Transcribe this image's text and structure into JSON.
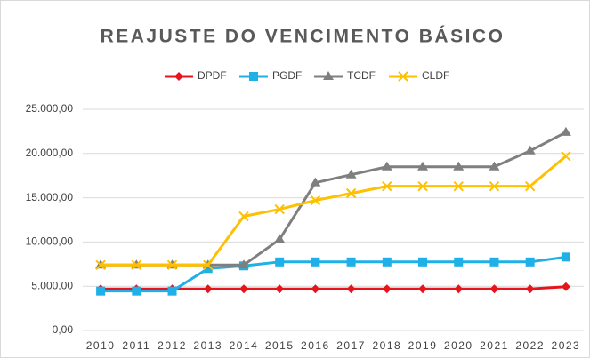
{
  "chart_data": {
    "type": "line",
    "title": "REAJUSTE DO VENCIMENTO BÁSICO",
    "categories": [
      "2010",
      "2011",
      "2012",
      "2013",
      "2014",
      "2015",
      "2016",
      "2017",
      "2018",
      "2019",
      "2020",
      "2021",
      "2022",
      "2023"
    ],
    "series": [
      {
        "name": "DPDF",
        "color": "#e8141b",
        "marker": "diamond",
        "values": [
          4700,
          4700,
          4700,
          4700,
          4700,
          4700,
          4700,
          4700,
          4700,
          4700,
          4700,
          4700,
          4700,
          4950
        ]
      },
      {
        "name": "PGDF",
        "color": "#1fb0e8",
        "marker": "square",
        "values": [
          4450,
          4450,
          4450,
          7000,
          7300,
          7750,
          7750,
          7750,
          7750,
          7750,
          7750,
          7750,
          7750,
          8300
        ]
      },
      {
        "name": "TCDF",
        "color": "#7f7f7f",
        "marker": "triangle",
        "values": [
          7400,
          7400,
          7400,
          7400,
          7400,
          10300,
          16700,
          17600,
          18500,
          18500,
          18500,
          18500,
          20300,
          22400
        ]
      },
      {
        "name": "CLDF",
        "color": "#ffc000",
        "marker": "x",
        "values": [
          7400,
          7400,
          7400,
          7400,
          12900,
          13700,
          14700,
          15500,
          16300,
          16300,
          16300,
          16300,
          16300,
          19700
        ]
      }
    ],
    "ylim": [
      0,
      25000
    ],
    "yticks": [
      {
        "value": 0,
        "label": "0,00"
      },
      {
        "value": 5000,
        "label": "5.000,00"
      },
      {
        "value": 10000,
        "label": "10.000,00"
      },
      {
        "value": 15000,
        "label": "15.000,00"
      },
      {
        "value": 20000,
        "label": "20.000,00"
      },
      {
        "value": 25000,
        "label": "25.000,00"
      }
    ],
    "grid": true,
    "legend": "top"
  }
}
